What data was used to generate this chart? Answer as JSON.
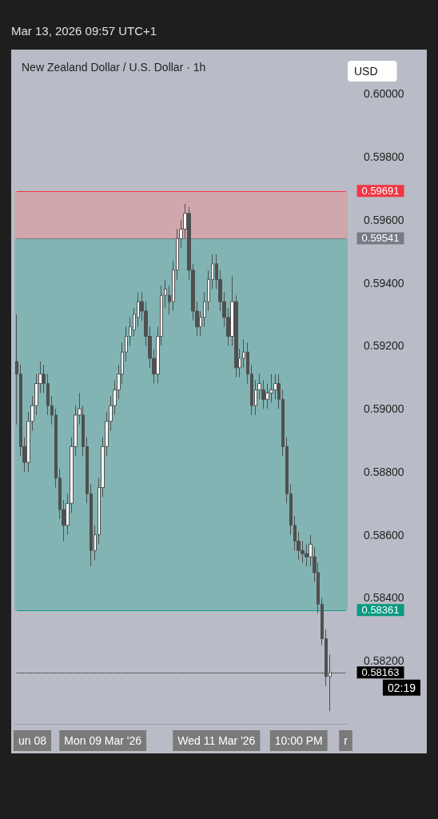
{
  "chart_data": {
    "type": "candlestick",
    "title": "New Zealand Dollar / U.S. Dollar · 1h",
    "ylabel": "USD",
    "color": "#505050",
    "categories": [
      null,
      null,
      null,
      null,
      "un 08",
      null,
      null,
      null,
      null,
      null,
      null,
      null,
      null,
      null,
      null,
      null,
      null,
      null,
      null,
      null,
      null,
      null,
      "Mon 09 Mar '26",
      null,
      null,
      null,
      null,
      null,
      null,
      null,
      null,
      null,
      null,
      null,
      null,
      null,
      null,
      null,
      null,
      null,
      null,
      null,
      null,
      null,
      null,
      null,
      null,
      null,
      null,
      null,
      null,
      "Wed 11 Mar '26",
      null,
      null,
      null,
      null,
      null,
      null,
      null,
      null,
      null,
      null,
      null,
      null,
      null,
      null,
      null,
      null,
      null,
      null,
      null,
      null,
      "10:00 PM",
      null,
      null,
      null,
      null,
      null,
      null,
      null,
      null,
      null,
      null,
      null,
      "r"
    ],
    "ohlc": [
      [
        0.5915,
        0.593,
        0.5895,
        0.5911
      ],
      [
        0.5911,
        0.5914,
        0.5885,
        0.5888
      ],
      [
        0.5888,
        0.5891,
        0.588,
        0.5883
      ],
      [
        0.5883,
        0.5899,
        0.588,
        0.5896
      ],
      [
        0.5896,
        0.5904,
        0.5893,
        0.5901
      ],
      [
        0.5901,
        0.5911,
        0.5898,
        0.5908
      ],
      [
        0.5908,
        0.5915,
        0.5905,
        0.5911
      ],
      [
        0.5911,
        0.5914,
        0.5905,
        0.5908
      ],
      [
        0.5908,
        0.5911,
        0.5898,
        0.5901
      ],
      [
        0.5901,
        0.5904,
        0.5895,
        0.5898
      ],
      [
        0.5898,
        0.59,
        0.5875,
        0.5878
      ],
      [
        0.5878,
        0.5881,
        0.5865,
        0.5868
      ],
      [
        0.5868,
        0.5871,
        0.5858,
        0.5863
      ],
      [
        0.5863,
        0.5873,
        0.586,
        0.587
      ],
      [
        0.587,
        0.5891,
        0.5867,
        0.5888
      ],
      [
        0.5888,
        0.5901,
        0.5885,
        0.5898
      ],
      [
        0.5898,
        0.5905,
        0.5895,
        0.59
      ],
      [
        0.5898,
        0.5901,
        0.5885,
        0.5888
      ],
      [
        0.5888,
        0.5891,
        0.587,
        0.5873
      ],
      [
        0.5873,
        0.5876,
        0.585,
        0.5855
      ],
      [
        0.5855,
        0.5863,
        0.5852,
        0.586
      ],
      [
        0.586,
        0.5878,
        0.5857,
        0.5875
      ],
      [
        0.5875,
        0.5891,
        0.5872,
        0.5888
      ],
      [
        0.5888,
        0.5899,
        0.5885,
        0.5896
      ],
      [
        0.5896,
        0.5904,
        0.5893,
        0.5901
      ],
      [
        0.5901,
        0.5909,
        0.5898,
        0.5906
      ],
      [
        0.5906,
        0.5914,
        0.5903,
        0.5911
      ],
      [
        0.5911,
        0.5921,
        0.5908,
        0.5918
      ],
      [
        0.5918,
        0.5926,
        0.5915,
        0.5923
      ],
      [
        0.5923,
        0.5929,
        0.592,
        0.5926
      ],
      [
        0.5925,
        0.5932,
        0.5923,
        0.593
      ],
      [
        0.5929,
        0.5937,
        0.5926,
        0.5934
      ],
      [
        0.5934,
        0.5937,
        0.5928,
        0.5931
      ],
      [
        0.5931,
        0.5934,
        0.592,
        0.5923
      ],
      [
        0.5923,
        0.5926,
        0.5913,
        0.5916
      ],
      [
        0.5916,
        0.5919,
        0.5908,
        0.5911
      ],
      [
        0.5911,
        0.5926,
        0.5908,
        0.5923
      ],
      [
        0.5923,
        0.5939,
        0.592,
        0.5936
      ],
      [
        0.5936,
        0.5941,
        0.5932,
        0.5938
      ],
      [
        0.5936,
        0.5939,
        0.593,
        0.5934
      ],
      [
        0.5934,
        0.5947,
        0.5931,
        0.5944
      ],
      [
        0.5944,
        0.5957,
        0.5941,
        0.5954
      ],
      [
        0.5954,
        0.596,
        0.5951,
        0.5957
      ],
      [
        0.5957,
        0.5965,
        0.5954,
        0.5962
      ],
      [
        0.5962,
        0.5964,
        0.5941,
        0.5944
      ],
      [
        0.5944,
        0.5946,
        0.5928,
        0.5931
      ],
      [
        0.5931,
        0.5934,
        0.5923,
        0.5926
      ],
      [
        0.5926,
        0.5931,
        0.5923,
        0.5929
      ],
      [
        0.5929,
        0.5937,
        0.5926,
        0.5934
      ],
      [
        0.5934,
        0.5944,
        0.5931,
        0.5941
      ],
      [
        0.5941,
        0.5949,
        0.5938,
        0.5946
      ],
      [
        0.5946,
        0.5949,
        0.5938,
        0.5941
      ],
      [
        0.5941,
        0.5944,
        0.5931,
        0.5934
      ],
      [
        0.5934,
        0.5937,
        0.5926,
        0.5929
      ],
      [
        0.5929,
        0.5932,
        0.592,
        0.5923
      ],
      [
        0.5923,
        0.5942,
        0.592,
        0.5934
      ],
      [
        0.5934,
        0.5936,
        0.591,
        0.5913
      ],
      [
        0.5913,
        0.5919,
        0.591,
        0.5916
      ],
      [
        0.5916,
        0.5922,
        0.5913,
        0.5918
      ],
      [
        0.5918,
        0.5921,
        0.5908,
        0.5911
      ],
      [
        0.5911,
        0.5914,
        0.5898,
        0.5901
      ],
      [
        0.5901,
        0.5909,
        0.5898,
        0.5906
      ],
      [
        0.5906,
        0.5911,
        0.5903,
        0.5908
      ],
      [
        0.5906,
        0.5909,
        0.59,
        0.5903
      ],
      [
        0.5903,
        0.5908,
        0.59,
        0.5905
      ],
      [
        0.5905,
        0.5911,
        0.5902,
        0.5906
      ],
      [
        0.5906,
        0.5911,
        0.5903,
        0.5908
      ],
      [
        0.5908,
        0.5911,
        0.59,
        0.5903
      ],
      [
        0.5903,
        0.5906,
        0.5885,
        0.5888
      ],
      [
        0.5888,
        0.5891,
        0.587,
        0.5873
      ],
      [
        0.5873,
        0.5876,
        0.586,
        0.5863
      ],
      [
        0.5863,
        0.5866,
        0.5855,
        0.5858
      ],
      [
        0.5858,
        0.5861,
        0.5852,
        0.5855
      ],
      [
        0.5855,
        0.5858,
        0.5851,
        0.5854
      ],
      [
        0.5854,
        0.5857,
        0.585,
        0.5853
      ],
      [
        0.5853,
        0.586,
        0.585,
        0.5857
      ],
      [
        0.5853,
        0.5856,
        0.5845,
        0.5848
      ],
      [
        0.5848,
        0.5851,
        0.5835,
        0.5838
      ],
      [
        0.5838,
        0.584,
        0.5825,
        0.5827
      ],
      [
        0.5827,
        0.583,
        0.5812,
        0.5815
      ],
      [
        0.5815,
        0.5822,
        0.5804,
        0.58163
      ],
      null,
      null,
      null,
      null
    ],
    "ylim": [
      0.58,
      0.6014
    ],
    "yticks": [
      {
        "value": 0.582,
        "label": "0.58200"
      },
      {
        "value": 0.584,
        "label": "0.58400"
      },
      {
        "value": 0.586,
        "label": "0.58600"
      },
      {
        "value": 0.588,
        "label": "0.58800"
      },
      {
        "value": 0.59,
        "label": "0.59000"
      },
      {
        "value": 0.592,
        "label": "0.59200"
      },
      {
        "value": 0.594,
        "label": "0.59400"
      },
      {
        "value": 0.596,
        "label": "0.59600"
      },
      {
        "value": 0.598,
        "label": "0.59800"
      },
      {
        "value": 0.6,
        "label": "0.60000"
      }
    ],
    "bands": [
      {
        "axis": "y",
        "from": 0.59541,
        "to": 0.59691,
        "color": "#d4a3a8"
      },
      {
        "axis": "y",
        "from": 0.58361,
        "to": 0.59541,
        "color": "#78b3b0"
      }
    ],
    "ref_lines": [
      {
        "axis": "y",
        "value": 0.59691,
        "label": "0.59691",
        "color": "#f23645",
        "line_style": "solid"
      },
      {
        "axis": "y",
        "value": 0.59541,
        "label": "0.59541",
        "color": "#787b86",
        "line_style": "solid"
      },
      {
        "axis": "y",
        "value": 0.58361,
        "label": "0.58361",
        "color": "#089981",
        "line_style": "solid"
      },
      {
        "axis": "y",
        "value": 0.58163,
        "label": "0.58163",
        "color": "#000000",
        "line_style": "dotted"
      }
    ],
    "annotations": [
      "Mar 13, 2026 09:57 UTC+1",
      "02:19"
    ],
    "grid": false
  }
}
